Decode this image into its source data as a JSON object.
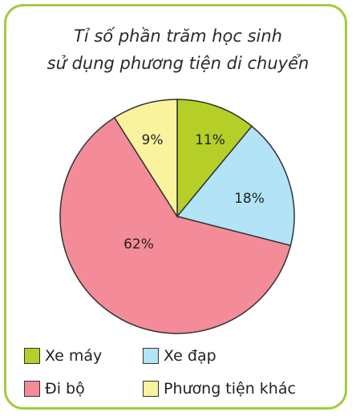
{
  "chart_data": {
    "type": "pie",
    "title_lines": [
      "Tỉ số phần trăm học sinh",
      "sử dụng phương tiện di chuyển"
    ],
    "slices": [
      {
        "name": "Xe máy",
        "value": 11,
        "label": "11%",
        "color": "#b5cf28"
      },
      {
        "name": "Xe đạp",
        "value": 18,
        "label": "18%",
        "color": "#b3e3f7"
      },
      {
        "name": "Đi bộ",
        "value": 62,
        "label": "62%",
        "color": "#f38c98"
      },
      {
        "name": "Phương tiện khác",
        "value": 9,
        "label": "9%",
        "color": "#faf39e"
      }
    ],
    "legend": [
      {
        "name": "Xe máy",
        "color": "#b5cf28"
      },
      {
        "name": "Xe đạp",
        "color": "#b3e3f7"
      },
      {
        "name": "Đi bộ",
        "color": "#f38c98"
      },
      {
        "name": "Phương tiện khác",
        "color": "#faf39e"
      }
    ],
    "legend_placement": "bottom",
    "start": "top",
    "direction": "clockwise"
  },
  "colors": {
    "border": "#a3cc3b",
    "outline": "#333333"
  }
}
